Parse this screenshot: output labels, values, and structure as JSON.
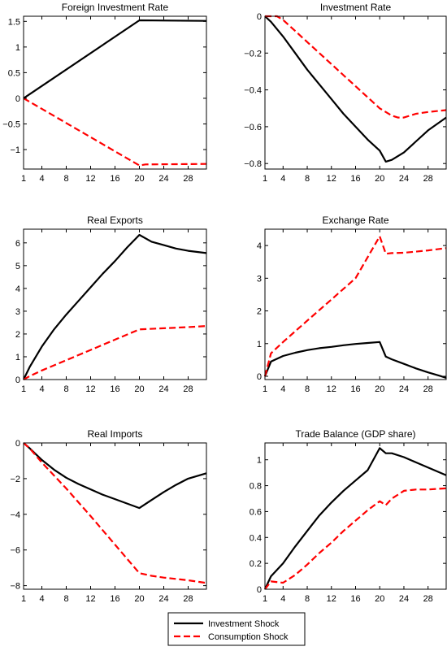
{
  "chart_data": [
    {
      "type": "line",
      "title": "Foreign Investment Rate",
      "xlim": [
        1,
        31
      ],
      "ylim": [
        -1.38,
        1.6
      ],
      "xticks": [
        1,
        4,
        8,
        12,
        16,
        20,
        24,
        28
      ],
      "yticks": [
        -1,
        -0.5,
        0,
        0.5,
        1,
        1.5
      ],
      "ytick_labels": [
        "−1",
        "−0.5",
        "0",
        "0.5",
        "1",
        "1.5"
      ],
      "series": [
        {
          "name": "Investment Shock",
          "color": "#000000",
          "style": "solid",
          "x": [
            1,
            20,
            31
          ],
          "y": [
            0,
            1.52,
            1.51
          ]
        },
        {
          "name": "Consumption Shock",
          "color": "#ff0000",
          "style": "dashed",
          "x": [
            1,
            20,
            21,
            31
          ],
          "y": [
            0,
            -1.31,
            -1.29,
            -1.28
          ]
        }
      ]
    },
    {
      "type": "line",
      "title": "Investment Rate",
      "xlim": [
        1,
        31
      ],
      "ylim": [
        -0.83,
        0
      ],
      "xticks": [
        1,
        4,
        8,
        12,
        16,
        20,
        24,
        28
      ],
      "yticks": [
        -0.8,
        -0.6,
        -0.4,
        -0.2,
        0
      ],
      "ytick_labels": [
        "−0.8",
        "−0.6",
        "−0.4",
        "−0.2",
        "0"
      ],
      "series": [
        {
          "name": "Investment Shock",
          "color": "#000000",
          "style": "solid",
          "x": [
            1,
            2,
            4,
            6,
            8,
            10,
            12,
            14,
            16,
            18,
            20,
            21,
            22,
            24,
            26,
            28,
            31
          ],
          "y": [
            0,
            -0.03,
            -0.11,
            -0.2,
            -0.29,
            -0.37,
            -0.45,
            -0.53,
            -0.6,
            -0.67,
            -0.73,
            -0.79,
            -0.78,
            -0.74,
            -0.68,
            -0.62,
            -0.55
          ]
        },
        {
          "name": "Consumption Shock",
          "color": "#ff0000",
          "style": "dashed",
          "x": [
            1,
            3,
            4,
            6,
            8,
            10,
            12,
            14,
            16,
            18,
            20,
            22,
            23,
            24,
            26,
            28,
            31
          ],
          "y": [
            0,
            0,
            -0.02,
            -0.08,
            -0.14,
            -0.2,
            -0.26,
            -0.32,
            -0.38,
            -0.44,
            -0.5,
            -0.54,
            -0.55,
            -0.55,
            -0.53,
            -0.52,
            -0.51
          ]
        }
      ]
    },
    {
      "type": "line",
      "title": "Real Exports",
      "xlim": [
        1,
        31
      ],
      "ylim": [
        0,
        6.6
      ],
      "xticks": [
        1,
        4,
        8,
        12,
        16,
        20,
        24,
        28
      ],
      "yticks": [
        0,
        1,
        2,
        3,
        4,
        5,
        6
      ],
      "ytick_labels": [
        "0",
        "1",
        "2",
        "3",
        "4",
        "5",
        "6"
      ],
      "series": [
        {
          "name": "Investment Shock",
          "color": "#000000",
          "style": "solid",
          "x": [
            1,
            2,
            4,
            6,
            8,
            10,
            12,
            14,
            16,
            18,
            20,
            22,
            24,
            26,
            28,
            31
          ],
          "y": [
            0,
            0.55,
            1.45,
            2.2,
            2.85,
            3.45,
            4.05,
            4.65,
            5.2,
            5.8,
            6.35,
            6.05,
            5.9,
            5.75,
            5.65,
            5.55
          ]
        },
        {
          "name": "Consumption Shock",
          "color": "#ff0000",
          "style": "dashed",
          "x": [
            1,
            2,
            4,
            8,
            12,
            16,
            20,
            24,
            28,
            31
          ],
          "y": [
            0,
            0.15,
            0.4,
            0.85,
            1.3,
            1.75,
            2.2,
            2.25,
            2.3,
            2.35
          ]
        }
      ]
    },
    {
      "type": "line",
      "title": "Exchange Rate",
      "xlim": [
        1,
        31
      ],
      "ylim": [
        -0.1,
        4.5
      ],
      "xticks": [
        1,
        4,
        8,
        12,
        16,
        20,
        24,
        28
      ],
      "yticks": [
        0,
        1,
        2,
        3,
        4
      ],
      "ytick_labels": [
        "0",
        "1",
        "2",
        "3",
        "4"
      ],
      "series": [
        {
          "name": "Investment Shock",
          "color": "#000000",
          "style": "solid",
          "x": [
            1,
            2,
            4,
            6,
            8,
            10,
            12,
            14,
            16,
            18,
            20,
            21,
            22,
            24,
            26,
            28,
            30,
            31
          ],
          "y": [
            0,
            0.45,
            0.62,
            0.72,
            0.8,
            0.86,
            0.9,
            0.95,
            0.99,
            1.02,
            1.05,
            0.6,
            0.52,
            0.38,
            0.24,
            0.12,
            0.01,
            -0.05
          ]
        },
        {
          "name": "Consumption Shock",
          "color": "#ff0000",
          "style": "dashed",
          "x": [
            1,
            2,
            4,
            8,
            12,
            16,
            20,
            21,
            22,
            24,
            28,
            31
          ],
          "y": [
            0,
            0.7,
            1.05,
            1.7,
            2.35,
            3.0,
            4.28,
            3.75,
            3.77,
            3.78,
            3.85,
            3.92
          ]
        }
      ]
    },
    {
      "type": "line",
      "title": "Real Imports",
      "xlim": [
        1,
        31
      ],
      "ylim": [
        -8.2,
        0
      ],
      "xticks": [
        1,
        4,
        8,
        12,
        16,
        20,
        24,
        28
      ],
      "yticks": [
        -8,
        -6,
        -4,
        -2,
        0
      ],
      "ytick_labels": [
        "−8",
        "−6",
        "−4",
        "−2",
        "0"
      ],
      "series": [
        {
          "name": "Investment Shock",
          "color": "#000000",
          "style": "solid",
          "x": [
            1,
            2,
            4,
            6,
            8,
            10,
            12,
            14,
            16,
            18,
            20,
            22,
            24,
            26,
            28,
            31
          ],
          "y": [
            0,
            -0.3,
            -0.95,
            -1.5,
            -1.95,
            -2.3,
            -2.6,
            -2.9,
            -3.15,
            -3.4,
            -3.65,
            -3.2,
            -2.75,
            -2.35,
            -2.0,
            -1.7
          ]
        },
        {
          "name": "Consumption Shock",
          "color": "#ff0000",
          "style": "dashed",
          "x": [
            1,
            2,
            4,
            8,
            12,
            16,
            19,
            20,
            22,
            24,
            28,
            31
          ],
          "y": [
            0,
            -0.3,
            -1.1,
            -2.55,
            -4.1,
            -5.7,
            -6.9,
            -7.3,
            -7.45,
            -7.55,
            -7.7,
            -7.85
          ]
        }
      ]
    },
    {
      "type": "line",
      "title": "Trade Balance (GDP share)",
      "xlim": [
        1,
        31
      ],
      "ylim": [
        0,
        1.13
      ],
      "xticks": [
        1,
        4,
        8,
        12,
        16,
        20,
        24,
        28
      ],
      "yticks": [
        0,
        0.2,
        0.4,
        0.6,
        0.8,
        1
      ],
      "ytick_labels": [
        "0",
        "0.2",
        "0.4",
        "0.6",
        "0.8",
        "1"
      ],
      "series": [
        {
          "name": "Investment Shock",
          "color": "#000000",
          "style": "solid",
          "x": [
            1,
            2,
            4,
            6,
            8,
            10,
            12,
            14,
            16,
            18,
            20,
            21,
            22,
            24,
            26,
            28,
            31
          ],
          "y": [
            0,
            0.1,
            0.2,
            0.33,
            0.45,
            0.57,
            0.67,
            0.76,
            0.84,
            0.92,
            1.09,
            1.05,
            1.05,
            1.02,
            0.98,
            0.94,
            0.88
          ]
        },
        {
          "name": "Consumption Shock",
          "color": "#ff0000",
          "style": "dashed",
          "x": [
            1,
            2,
            4,
            6,
            8,
            10,
            12,
            14,
            16,
            18,
            20,
            21,
            22,
            24,
            26,
            28,
            31
          ],
          "y": [
            0,
            0.06,
            0.05,
            0.11,
            0.19,
            0.28,
            0.36,
            0.45,
            0.53,
            0.61,
            0.68,
            0.65,
            0.7,
            0.76,
            0.77,
            0.77,
            0.78
          ]
        }
      ]
    }
  ],
  "legend": {
    "position": "bottom-center",
    "items": [
      {
        "label": "Investment Shock",
        "color": "#000000",
        "style": "solid"
      },
      {
        "label": "Consumption Shock",
        "color": "#ff0000",
        "style": "dashed"
      }
    ]
  }
}
